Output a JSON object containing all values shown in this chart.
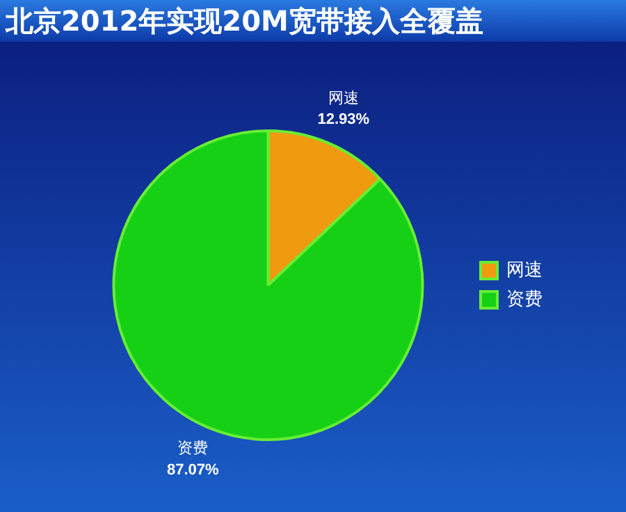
{
  "chart_data": {
    "type": "pie",
    "title": "北京2012年实现20M宽带接入全覆盖",
    "categories": [
      "网速",
      "资费"
    ],
    "values": [
      12.93,
      87.07
    ],
    "value_labels": [
      "12.93%",
      "87.07%"
    ],
    "colors": [
      "#f09a10",
      "#16d016"
    ],
    "legend": "right"
  }
}
